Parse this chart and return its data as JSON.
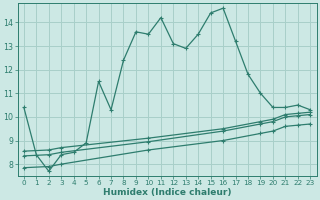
{
  "xlabel": "Humidex (Indice chaleur)",
  "bg_color": "#cce8e4",
  "grid_color": "#a8cfc9",
  "line_color": "#2e7d6e",
  "xlim": [
    -0.5,
    23.5
  ],
  "ylim": [
    7.5,
    14.8
  ],
  "x_ticks": [
    0,
    1,
    2,
    3,
    4,
    5,
    6,
    7,
    8,
    9,
    10,
    11,
    12,
    13,
    14,
    15,
    16,
    17,
    18,
    19,
    20,
    21,
    22,
    23
  ],
  "y_ticks": [
    8,
    9,
    10,
    11,
    12,
    13,
    14
  ],
  "line1_x": [
    0,
    1,
    2,
    3,
    4,
    5,
    6,
    7,
    8,
    9,
    10,
    11,
    12,
    13,
    14,
    15,
    16,
    17,
    18,
    19,
    20,
    21,
    22,
    23
  ],
  "line1_y": [
    10.4,
    8.4,
    7.7,
    8.4,
    8.5,
    8.9,
    11.5,
    10.3,
    12.4,
    13.6,
    13.5,
    14.2,
    13.1,
    12.9,
    13.5,
    14.4,
    14.6,
    13.2,
    11.8,
    11.0,
    10.4,
    10.4,
    10.5,
    10.3
  ],
  "line2_x": [
    0,
    2,
    3,
    10,
    16,
    19,
    20,
    21,
    22,
    23
  ],
  "line2_y": [
    8.55,
    8.6,
    8.7,
    9.1,
    9.5,
    9.8,
    9.9,
    10.1,
    10.15,
    10.2
  ],
  "line3_x": [
    0,
    2,
    3,
    10,
    16,
    19,
    20,
    21,
    22,
    23
  ],
  "line3_y": [
    8.35,
    8.4,
    8.5,
    8.95,
    9.4,
    9.7,
    9.8,
    10.0,
    10.05,
    10.1
  ],
  "line4_x": [
    0,
    2,
    3,
    10,
    16,
    19,
    20,
    21,
    22,
    23
  ],
  "line4_y": [
    7.85,
    7.9,
    8.0,
    8.6,
    9.0,
    9.3,
    9.4,
    9.6,
    9.65,
    9.7
  ],
  "lw": 0.9,
  "marker_size": 3.5,
  "tick_fontsize": 5.2,
  "xlabel_fontsize": 6.5
}
